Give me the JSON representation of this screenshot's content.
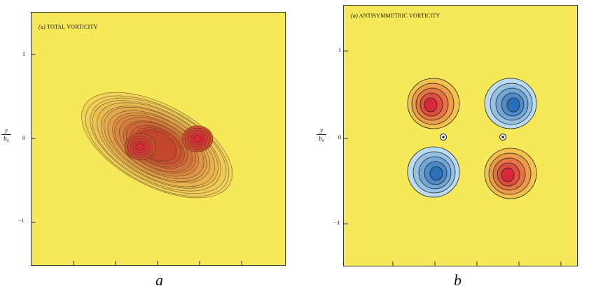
{
  "panels": [
    {
      "letter": "(a)",
      "title": "TOTAL VORTICITY",
      "yticks": [
        "1",
        "0",
        "−1"
      ],
      "ylabel_num": "y",
      "ylabel_den": "b₀",
      "caption": "a"
    },
    {
      "letter": "(a)",
      "title": "ANTISYMMETRIC VORTICITY",
      "yticks": [
        "1",
        "0",
        "−1"
      ],
      "ylabel_num": "y",
      "ylabel_den": "b₀",
      "caption": "b"
    }
  ],
  "colors": {
    "background": "#f7e85a",
    "positive": "#d8283a",
    "negative": "#2a6fb8",
    "contour": "#3a2a10"
  }
}
